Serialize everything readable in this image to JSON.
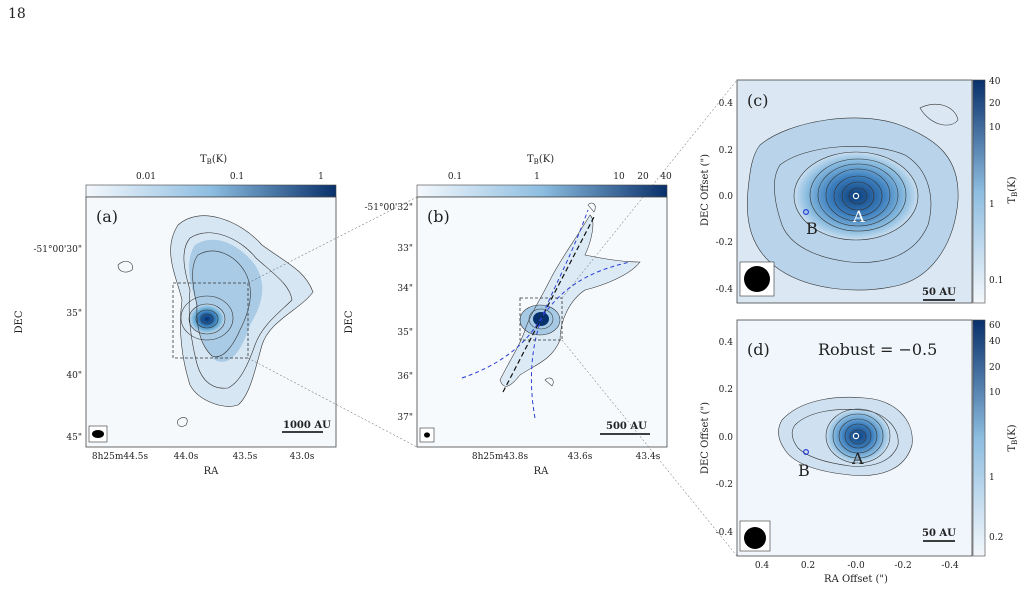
{
  "page_number": "18",
  "panels": {
    "a": {
      "tag": "(a)",
      "colorbar": {
        "title": "T_B(K)",
        "ticks": [
          "0.01",
          "0.1",
          "1"
        ]
      },
      "ylabel": "DEC",
      "yticks": [
        "-51°00'30\"",
        "35\"",
        "40\"",
        "45\""
      ],
      "xlabel": "RA",
      "xticks": [
        "8h25m44.5s",
        "44.0s",
        "43.5s",
        "43.0s"
      ],
      "scalebar": "1000 AU"
    },
    "b": {
      "tag": "(b)",
      "colorbar": {
        "title": "T_B(K)",
        "ticks": [
          "0.1",
          "1",
          "10",
          "20",
          "40"
        ]
      },
      "ylabel": "DEC",
      "yticks": [
        "-51°00'32\"",
        "33\"",
        "34\"",
        "35\"",
        "36\"",
        "37\""
      ],
      "xlabel": "RA",
      "xticks": [
        "8h25m43.8s",
        "43.6s",
        "43.4s"
      ],
      "scalebar": "500 AU"
    },
    "c": {
      "tag": "(c)",
      "ylabel": "DEC Offset (\")",
      "yticks": [
        "0.4",
        "0.2",
        "0.0",
        "-0.2",
        "-0.4"
      ],
      "colorbar": {
        "label": "T_B(K)",
        "ticks": [
          "40",
          "20",
          "10",
          "1",
          "0.1"
        ]
      },
      "source_a": "A",
      "source_b": "B",
      "scalebar": "50 AU"
    },
    "d": {
      "tag": "(d)",
      "annotation": "Robust = −0.5",
      "ylabel": "DEC Offset (\")",
      "yticks": [
        "0.4",
        "0.2",
        "0.0",
        "-0.2",
        "-0.4"
      ],
      "xlabel": "RA Offset (\")",
      "xticks": [
        "0.4",
        "0.2",
        "-0.0",
        "-0.2",
        "-0.4"
      ],
      "colorbar": {
        "label": "T_B(K)",
        "ticks": [
          "60",
          "40",
          "20",
          "10",
          "1",
          "0.2"
        ]
      },
      "source_a": "A",
      "source_b": "B",
      "scalebar": "50 AU"
    }
  },
  "colors": {
    "map_light": "#eaf2fa",
    "map_mid": "#9cc3e2",
    "map_dark": "#08306b",
    "contour": "#333333",
    "jet": "#2b3fd6"
  }
}
